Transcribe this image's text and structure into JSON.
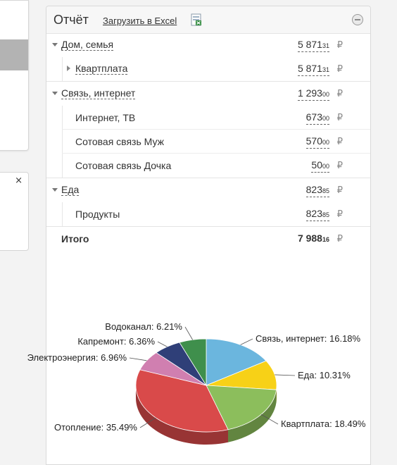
{
  "report": {
    "title": "Отчёт",
    "excel_link": "Загрузить в Excel",
    "currency": "₽",
    "groups": [
      {
        "label": "Дом, семья",
        "amount_main": "5 871",
        "amount_kop": "31",
        "children": [
          {
            "label": "Квартплата",
            "amount_main": "5 871",
            "amount_kop": "31",
            "expandable": true
          }
        ]
      },
      {
        "label": "Связь, интернет",
        "amount_main": "1 293",
        "amount_kop": "00",
        "children": [
          {
            "label": "Интернет, ТВ",
            "amount_main": "673",
            "amount_kop": "00"
          },
          {
            "label": "Сотовая связь Муж",
            "amount_main": "570",
            "amount_kop": "00"
          },
          {
            "label": "Сотовая связь Дочка",
            "amount_main": "50",
            "amount_kop": "00"
          }
        ]
      },
      {
        "label": "Еда",
        "amount_main": "823",
        "amount_kop": "85",
        "children": [
          {
            "label": "Продукты",
            "amount_main": "823",
            "amount_kop": "85"
          }
        ]
      }
    ],
    "total": {
      "label": "Итого",
      "amount_main": "7 988",
      "amount_kop": "16"
    }
  },
  "left": {
    "close_label": "×"
  },
  "chart_data": {
    "type": "pie",
    "series": [
      {
        "label": "Связь, интернет: 16.18%",
        "value": 16.18,
        "color": "#6bb6de"
      },
      {
        "label": "Еда: 10.31%",
        "value": 10.31,
        "color": "#f7d117"
      },
      {
        "label": "Квартплата: 18.49%",
        "value": 18.49,
        "color": "#8cbe5c"
      },
      {
        "label": "Отопление: 35.49%",
        "value": 35.49,
        "color": "#d94a4a"
      },
      {
        "label": "Электроэнергия: 6.96%",
        "value": 6.96,
        "color": "#d07fb0"
      },
      {
        "label": "Капремонт: 6.36%",
        "value": 6.36,
        "color": "#2f3f78"
      },
      {
        "label": "Водоканал: 6.21%",
        "value": 6.21,
        "color": "#3f8f4c"
      }
    ]
  }
}
